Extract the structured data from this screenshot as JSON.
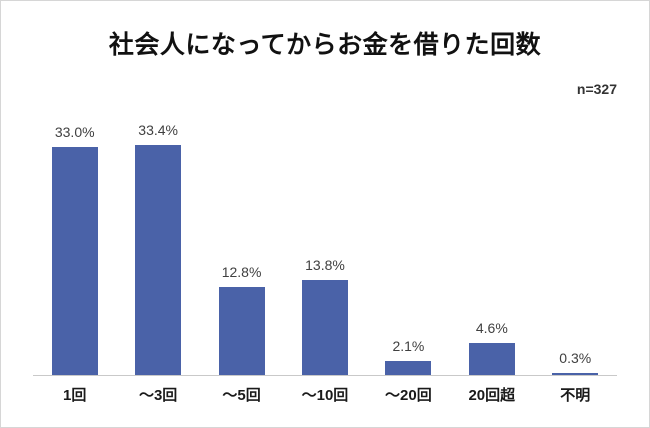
{
  "chart_data": {
    "type": "bar",
    "title": "社会人になってからお金を借りた回数",
    "sample_size_label": "n=327",
    "categories": [
      "1回",
      "～3回",
      "～5回",
      "～10回",
      "～20回",
      "20回超",
      "不明"
    ],
    "values": [
      33.0,
      33.4,
      12.8,
      13.8,
      2.1,
      4.6,
      0.3
    ],
    "value_labels": [
      "33.0%",
      "33.4%",
      "12.8%",
      "13.8%",
      "2.1%",
      "4.6%",
      "0.3%"
    ],
    "bar_color": "#4a62a8",
    "axis_line_color": "#c9c9c9",
    "ylim": [
      0,
      35
    ],
    "grid": false,
    "legend": false,
    "xlabel": "",
    "ylabel": ""
  }
}
